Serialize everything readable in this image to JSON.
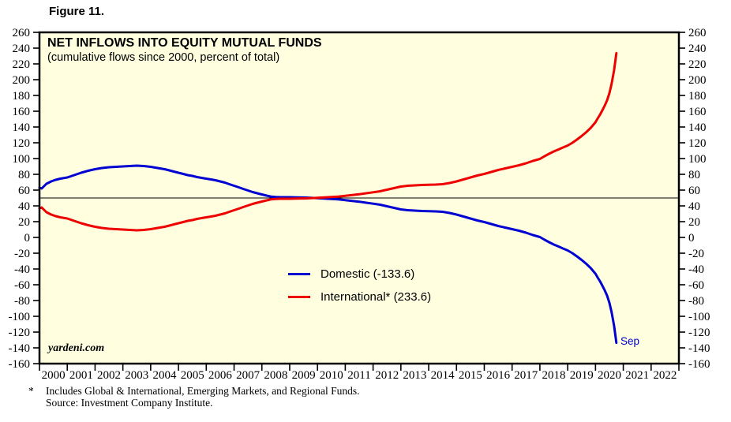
{
  "figure_label": "Figure 11.",
  "header": {
    "title": "NET INFLOWS INTO EQUITY MUTUAL FUNDS",
    "subtitle": "(cumulative flows since 2000, percent of total)"
  },
  "watermark": "yardeni.com",
  "end_label": "Sep",
  "legend": {
    "domestic_label": "Domestic (-133.6)",
    "international_label": "International* (233.6)"
  },
  "footnote": {
    "marker": "*",
    "line1": "Includes Global & International, Emerging Markets, and Regional Funds.",
    "line2": "Source: Investment Company Institute."
  },
  "colors": {
    "plot_background": "#FFFFE0",
    "frame": "#000000",
    "domestic_blue": "#0000D2",
    "international_red": "#EE0000"
  },
  "chart_data": {
    "type": "line",
    "title": "NET INFLOWS INTO EQUITY MUTUAL FUNDS",
    "subtitle": "(cumulative flows since 2000, percent of total)",
    "ylabel": "percent of total (cumulative flows since 2000)",
    "ylim": [
      -160,
      260
    ],
    "ytick_step": 20,
    "xlim": [
      2000,
      2023
    ],
    "x_tick_labels": [
      "2000",
      "2001",
      "2002",
      "2003",
      "2004",
      "2005",
      "2006",
      "2007",
      "2008",
      "2009",
      "2010",
      "2011",
      "2012",
      "2013",
      "2014",
      "2015",
      "2016",
      "2017",
      "2018",
      "2019",
      "2020",
      "2021",
      "2022"
    ],
    "reference_line_y": 50,
    "grid": false,
    "legend_position": "inside-center-left",
    "last_point_label": "Sep",
    "x": [
      2000.0,
      2000.08,
      2000.25,
      2000.42,
      2000.58,
      2000.75,
      2001.0,
      2001.25,
      2001.5,
      2001.75,
      2002.0,
      2002.25,
      2002.5,
      2002.75,
      2003.0,
      2003.25,
      2003.5,
      2003.75,
      2004.0,
      2004.17,
      2004.33,
      2004.5,
      2004.67,
      2004.83,
      2005.0,
      2005.17,
      2005.33,
      2005.5,
      2005.67,
      2005.83,
      2006.0,
      2006.17,
      2006.33,
      2006.5,
      2006.67,
      2006.83,
      2007.0,
      2007.17,
      2007.33,
      2007.5,
      2007.67,
      2007.83,
      2008.0,
      2008.17,
      2008.33,
      2008.5,
      2008.67,
      2008.83,
      2009.0,
      2009.25,
      2009.5,
      2009.75,
      2010.0,
      2010.25,
      2010.5,
      2010.75,
      2011.0,
      2011.25,
      2011.5,
      2011.75,
      2012.0,
      2012.25,
      2012.5,
      2012.75,
      2013.0,
      2013.25,
      2013.5,
      2013.75,
      2014.0,
      2014.25,
      2014.5,
      2014.75,
      2015.0,
      2015.25,
      2015.5,
      2015.75,
      2016.0,
      2016.25,
      2016.5,
      2016.75,
      2017.0,
      2017.25,
      2017.5,
      2017.75,
      2018.0,
      2018.17,
      2018.33,
      2018.5,
      2018.67,
      2018.83,
      2019.0,
      2019.17,
      2019.33,
      2019.5,
      2019.67,
      2019.83,
      2020.0,
      2020.08,
      2020.17,
      2020.25,
      2020.33,
      2020.42,
      2020.5,
      2020.58,
      2020.67,
      2020.75
    ],
    "series": [
      {
        "name": "Domestic",
        "final_value": -133.6,
        "color": "#0000D2",
        "y": [
          63,
          62,
          68,
          71,
          73,
          74.5,
          76,
          79,
          82,
          84.5,
          86.5,
          88,
          89,
          89.5,
          90,
          90.5,
          91,
          90.5,
          89.5,
          88.5,
          87.5,
          86.5,
          85,
          83.5,
          82,
          80.5,
          79,
          78,
          76.5,
          75.5,
          74.5,
          73.5,
          72.5,
          71,
          69.5,
          67.5,
          65.5,
          63.5,
          61.5,
          59.5,
          57.5,
          56,
          54.5,
          53,
          51.8,
          51.2,
          51,
          51,
          51,
          50.8,
          50.6,
          50.3,
          49.8,
          49.3,
          48.8,
          48.2,
          47.3,
          46.3,
          45.3,
          44,
          42.8,
          41.5,
          39.5,
          37.5,
          35.5,
          34.5,
          34,
          33.5,
          33.2,
          33,
          32.5,
          31,
          29,
          26.5,
          24,
          21.5,
          19.5,
          17,
          14.5,
          12.5,
          10.5,
          8.5,
          6,
          3,
          0.5,
          -3,
          -6,
          -9,
          -11.5,
          -14,
          -16.5,
          -20,
          -24,
          -28.5,
          -33.5,
          -39,
          -46,
          -51,
          -56,
          -61.5,
          -67,
          -74,
          -83,
          -95,
          -112,
          -133.6
        ]
      },
      {
        "name": "International*",
        "final_value": 233.6,
        "color": "#EE0000",
        "y": [
          37,
          38,
          32,
          29,
          27,
          25.5,
          24,
          21,
          18,
          15.5,
          13.5,
          12,
          11,
          10.5,
          10,
          9.5,
          9,
          9.5,
          10.5,
          11.5,
          12.5,
          13.5,
          15,
          16.5,
          18,
          19.5,
          21,
          22,
          23.5,
          24.5,
          25.5,
          26.5,
          27.5,
          29,
          30.5,
          32.5,
          34.5,
          36.5,
          38.5,
          40.5,
          42.5,
          44,
          45.5,
          47,
          48.2,
          48.8,
          49,
          49,
          49,
          49.2,
          49.4,
          49.7,
          50.2,
          50.7,
          51.2,
          51.8,
          52.7,
          53.7,
          54.7,
          56,
          57.2,
          58.5,
          60.5,
          62.5,
          64.5,
          65.5,
          66,
          66.5,
          66.8,
          67,
          67.5,
          69,
          71,
          73.5,
          76,
          78.5,
          80.5,
          83,
          85.5,
          87.5,
          89.5,
          91.5,
          94,
          97,
          99.5,
          103,
          106,
          109,
          111.5,
          114,
          116.5,
          120,
          124,
          128.5,
          133.5,
          139,
          146,
          151,
          156,
          161.5,
          167,
          174,
          183,
          195,
          212,
          233.6
        ]
      }
    ]
  }
}
